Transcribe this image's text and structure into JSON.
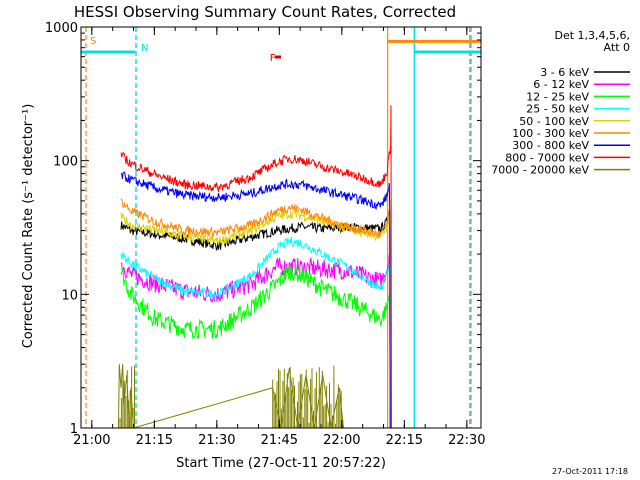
{
  "chart_data": {
    "type": "line",
    "title": "HESSI Observing Summary Count Rates, Corrected",
    "xlabel": "Start Time (27-Oct-11 20:57:22)",
    "ylabel": "Corrected Count Rate (s⁻¹ detector⁻¹)",
    "y_scale": "log",
    "ylim": [
      1,
      1000
    ],
    "xlim_minutes": [
      0,
      96
    ],
    "x_ticks": [
      {
        "label": "21:00",
        "minute": 2.6
      },
      {
        "label": "21:15",
        "minute": 17.6
      },
      {
        "label": "21:30",
        "minute": 32.6
      },
      {
        "label": "21:45",
        "minute": 47.6
      },
      {
        "label": "22:00",
        "minute": 62.6
      },
      {
        "label": "22:15",
        "minute": 77.6
      },
      {
        "label": "22:30",
        "minute": 92.6
      }
    ],
    "y_ticks": [
      {
        "label": "1",
        "value": 1
      },
      {
        "label": "10",
        "value": 10
      },
      {
        "label": "100",
        "value": 100
      },
      {
        "label": "1000",
        "value": 1000
      }
    ],
    "legend_header": [
      "Det 1,3,4,5,6,",
      "Att 0"
    ],
    "legend_position": "right",
    "series": [
      {
        "name": "3 - 6 keV",
        "color": "#000000",
        "points": [
          [
            9.6,
            33
          ],
          [
            12,
            30
          ],
          [
            18,
            28
          ],
          [
            25,
            26
          ],
          [
            33,
            23
          ],
          [
            41,
            27
          ],
          [
            47,
            30
          ],
          [
            53,
            32
          ],
          [
            58,
            31
          ],
          [
            64,
            32
          ],
          [
            70,
            31
          ],
          [
            72,
            31
          ],
          [
            73.5,
            35
          ],
          [
            74,
            40
          ]
        ]
      },
      {
        "name": "6 - 12 keV",
        "color": "#ff00ff",
        "points": [
          [
            9.6,
            17
          ],
          [
            12,
            14
          ],
          [
            18,
            12
          ],
          [
            25,
            10.5
          ],
          [
            33,
            10
          ],
          [
            41,
            12
          ],
          [
            47,
            16
          ],
          [
            53,
            16
          ],
          [
            58,
            15.5
          ],
          [
            64,
            15
          ],
          [
            70,
            13
          ],
          [
            72,
            12.5
          ],
          [
            73.5,
            16
          ],
          [
            74,
            20
          ]
        ]
      },
      {
        "name": "12 - 25 keV",
        "color": "#00ff00",
        "points": [
          [
            9.6,
            15
          ],
          [
            12,
            10
          ],
          [
            15,
            8
          ],
          [
            18,
            6.5
          ],
          [
            25,
            5.5
          ],
          [
            33,
            5.5
          ],
          [
            41,
            8
          ],
          [
            47,
            12
          ],
          [
            50,
            15
          ],
          [
            53,
            14
          ],
          [
            58,
            11
          ],
          [
            64,
            9
          ],
          [
            70,
            7
          ],
          [
            72,
            6.5
          ],
          [
            73.5,
            8
          ],
          [
            74,
            10
          ]
        ]
      },
      {
        "name": "25 - 50 keV",
        "color": "#00ffff",
        "points": [
          [
            9.6,
            20
          ],
          [
            12,
            17
          ],
          [
            18,
            13
          ],
          [
            25,
            10.5
          ],
          [
            33,
            10
          ],
          [
            41,
            14
          ],
          [
            47,
            22
          ],
          [
            50,
            25
          ],
          [
            53,
            24
          ],
          [
            58,
            20
          ],
          [
            64,
            16
          ],
          [
            70,
            12
          ],
          [
            72,
            11
          ],
          [
            73.5,
            14
          ],
          [
            74,
            17
          ]
        ]
      },
      {
        "name": "50 - 100 keV",
        "color": "#e0d000",
        "points": [
          [
            9.6,
            38
          ],
          [
            12,
            33
          ],
          [
            18,
            30
          ],
          [
            25,
            27
          ],
          [
            33,
            25
          ],
          [
            41,
            30
          ],
          [
            47,
            38
          ],
          [
            50,
            40
          ],
          [
            53,
            39
          ],
          [
            58,
            35
          ],
          [
            64,
            31
          ],
          [
            70,
            28
          ],
          [
            72,
            27
          ],
          [
            73.5,
            32
          ],
          [
            74,
            38
          ]
        ]
      },
      {
        "name": "100 - 300 keV",
        "color": "#ff8800",
        "points": [
          [
            9.6,
            50
          ],
          [
            12,
            42
          ],
          [
            18,
            35
          ],
          [
            25,
            30
          ],
          [
            33,
            29
          ],
          [
            41,
            33
          ],
          [
            47,
            42
          ],
          [
            50,
            45
          ],
          [
            53,
            43
          ],
          [
            58,
            37
          ],
          [
            64,
            32
          ],
          [
            70,
            29
          ],
          [
            72,
            28
          ],
          [
            73.5,
            34
          ],
          [
            74,
            42
          ]
        ]
      },
      {
        "name": "300 - 800 keV",
        "color": "#0000ff",
        "points": [
          [
            9.6,
            78
          ],
          [
            12,
            72
          ],
          [
            18,
            62
          ],
          [
            25,
            55
          ],
          [
            33,
            53
          ],
          [
            41,
            57
          ],
          [
            47,
            65
          ],
          [
            50,
            67
          ],
          [
            53,
            66
          ],
          [
            58,
            60
          ],
          [
            64,
            54
          ],
          [
            70,
            48
          ],
          [
            72,
            46
          ],
          [
            73.5,
            55
          ],
          [
            74,
            68
          ]
        ]
      },
      {
        "name": "800 - 7000 keV",
        "color": "#ff0000",
        "points": [
          [
            9.6,
            110
          ],
          [
            12,
            95
          ],
          [
            18,
            78
          ],
          [
            25,
            66
          ],
          [
            33,
            63
          ],
          [
            41,
            76
          ],
          [
            47,
            97
          ],
          [
            50,
            104
          ],
          [
            53,
            101
          ],
          [
            58,
            90
          ],
          [
            64,
            80
          ],
          [
            70,
            70
          ],
          [
            72,
            66
          ],
          [
            73.5,
            85
          ],
          [
            74.3,
            130
          ]
        ]
      },
      {
        "name": "7000 - 20000 keV",
        "color": "#808000",
        "points": [
          [
            9,
            1
          ],
          [
            9.2,
            3
          ],
          [
            9.6,
            2
          ],
          [
            10,
            3
          ],
          [
            10.3,
            1.5
          ],
          [
            11,
            2.5
          ],
          [
            11.6,
            1
          ],
          [
            12,
            2
          ],
          [
            12.6,
            1
          ],
          [
            46,
            2
          ],
          [
            48,
            1
          ],
          [
            50,
            2.8
          ],
          [
            52,
            1
          ],
          [
            54,
            2.5
          ],
          [
            56,
            1
          ],
          [
            58,
            2.5
          ],
          [
            60,
            1
          ],
          [
            62,
            2
          ],
          [
            63,
            1
          ]
        ]
      }
    ],
    "annotations": [
      {
        "label": "S",
        "color": "#ff8800",
        "bar_from_minute": 1.2,
        "bar_to_minute": 1.2
      },
      {
        "label": "N",
        "color": "#00e0e0",
        "bar_from_minute": 0,
        "bar_to_minute": 13
      },
      {
        "label": "F",
        "color": "#dd0000",
        "bar_from_minute": 46.5,
        "bar_to_minute": 48
      }
    ],
    "state_levels": [
      {
        "name": "N",
        "color": "#00e0e0",
        "segments": [
          [
            0,
            13
          ],
          [
            80,
            96
          ]
        ],
        "value": 650
      },
      {
        "name": "S",
        "color": "#ff8800",
        "segments": [
          [
            73.5,
            96
          ]
        ],
        "value": 780
      }
    ],
    "cyan_vertical_lines_minutes": [
      -0.4,
      13.2,
      80.0,
      93.6
    ],
    "orange_vertical_lines_minutes": [
      1.2,
      73.6,
      93.3
    ],
    "grid": false
  },
  "footer": {
    "timestamp": "27-Oct-2011 17:18"
  }
}
